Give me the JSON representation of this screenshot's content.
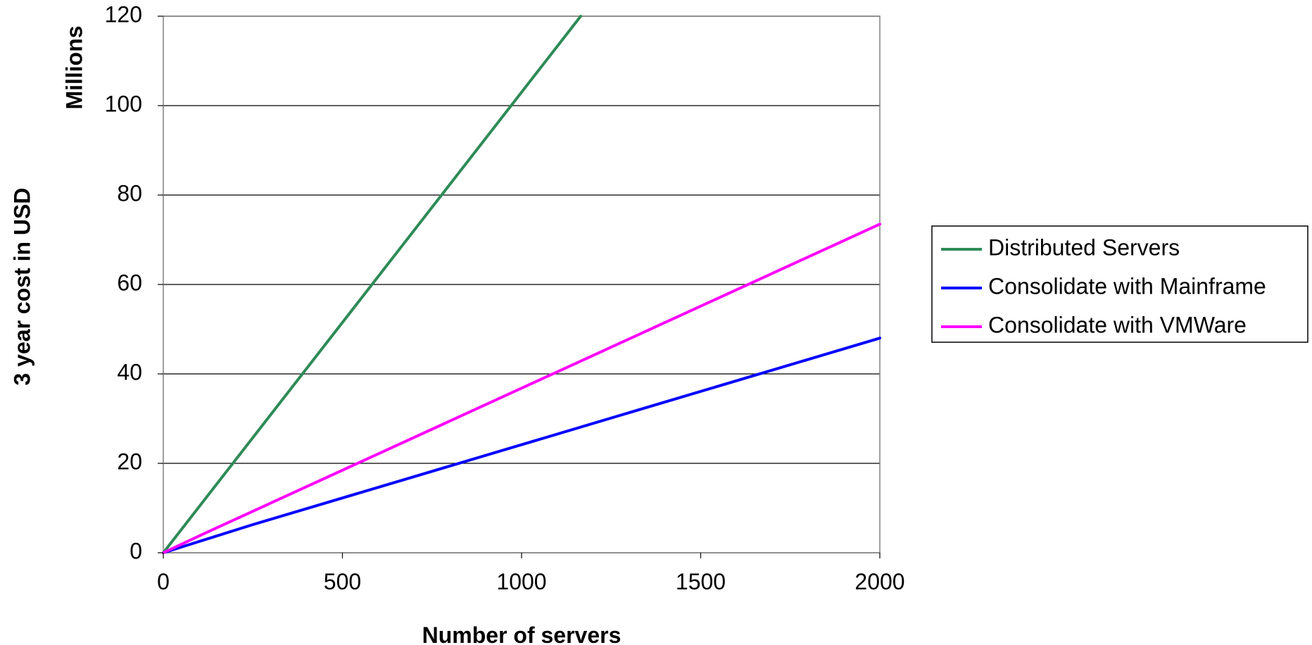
{
  "chart_data": {
    "type": "line",
    "xlabel": "Number of servers",
    "ylabel": "3 year cost in USD",
    "yunit": "Millions",
    "xlim": [
      0,
      2000
    ],
    "ylim": [
      0,
      120
    ],
    "xticks": [
      "0",
      "500",
      "1000",
      "1500",
      "2000"
    ],
    "yticks": [
      "0",
      "20",
      "40",
      "60",
      "80",
      "100",
      "120"
    ],
    "grid": "horizontal",
    "legend_position": "right",
    "series": [
      {
        "name": "Distributed Servers",
        "color": "#2e8b57",
        "x": [
          0,
          1165
        ],
        "y": [
          0,
          120
        ]
      },
      {
        "name": "Consolidate with Mainframe",
        "color": "#0000ff",
        "x": [
          0,
          250,
          2000
        ],
        "y": [
          0,
          6.3,
          48
        ]
      },
      {
        "name": "Consolidate with VMWare",
        "color": "#ff00ff",
        "x": [
          0,
          125,
          2000
        ],
        "y": [
          0,
          4.7,
          73.5
        ]
      }
    ]
  }
}
